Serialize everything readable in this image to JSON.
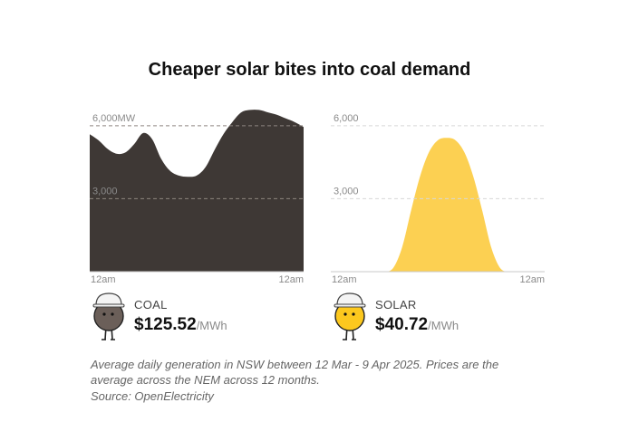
{
  "title": "Cheaper solar bites into coal demand",
  "chart_data": [
    {
      "type": "area",
      "name": "coal",
      "color": "#3e3835",
      "ylim": [
        0,
        7000
      ],
      "y_ticks": [
        {
          "value": 3000,
          "label": "3,000"
        },
        {
          "value": 6000,
          "label": "6,000MW"
        }
      ],
      "x_tick_labels": [
        "12am",
        "12am"
      ],
      "x": [
        0,
        1,
        2,
        3,
        4,
        5,
        6,
        7,
        8,
        9,
        10,
        11,
        12,
        13,
        14,
        15,
        16,
        17,
        18,
        19,
        20,
        21,
        22,
        23,
        24
      ],
      "y": [
        5650,
        5400,
        5050,
        4850,
        4900,
        5250,
        5700,
        5450,
        4650,
        4150,
        3950,
        3900,
        3950,
        4300,
        5000,
        5650,
        6150,
        6550,
        6650,
        6650,
        6550,
        6450,
        6300,
        6150,
        5950
      ]
    },
    {
      "type": "area",
      "name": "solar",
      "color": "#fcd052",
      "ylim": [
        0,
        7000
      ],
      "y_ticks": [
        {
          "value": 3000,
          "label": "3,000"
        },
        {
          "value": 6000,
          "label": "6,000"
        }
      ],
      "x_tick_labels": [
        "12am",
        "12am"
      ],
      "x": [
        0,
        1,
        2,
        3,
        4,
        5,
        6,
        7,
        8,
        9,
        10,
        11,
        12,
        13,
        14,
        15,
        16,
        17,
        18,
        19,
        20,
        21,
        22,
        23,
        24
      ],
      "y": [
        0,
        0,
        0,
        0,
        0,
        0,
        0,
        150,
        1000,
        2500,
        3900,
        4900,
        5400,
        5500,
        5400,
        4900,
        3900,
        2500,
        1000,
        150,
        0,
        0,
        0,
        0,
        0
      ]
    }
  ],
  "legend": {
    "coal": {
      "name": "COAL",
      "price": "$125.52",
      "unit": "/MWh",
      "body_color": "#6b5f59"
    },
    "solar": {
      "name": "SOLAR",
      "price": "$40.72",
      "unit": "/MWh",
      "body_color": "#fcc81e"
    }
  },
  "caption": "Average daily generation in NSW between 12 Mar - 9 Apr 2025. Prices are the average across the NEM across 12 months.",
  "source": "Source: OpenElectricity"
}
